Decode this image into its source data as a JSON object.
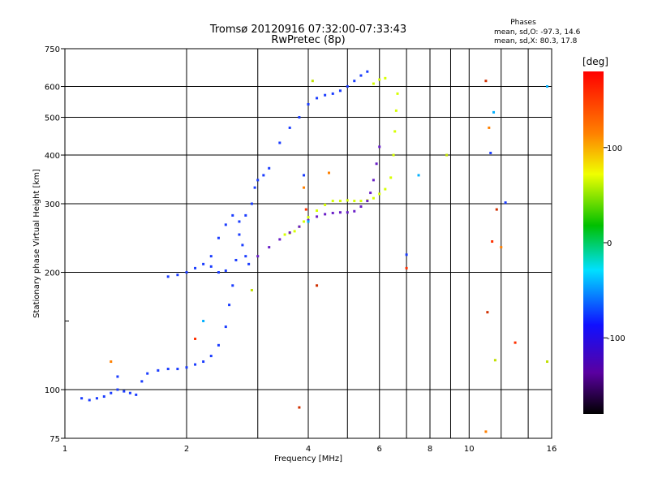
{
  "chart_data": {
    "type": "scatter",
    "title": "Tromsø 20120916 07:32:00-07:33:43",
    "subtitle": "RwPretec (8p)",
    "xlabel": "Frequency [MHz]",
    "ylabel": "Stationary phase Virtual Height [km]",
    "x_scale": "log",
    "y_scale": "log",
    "xlim": [
      1,
      16
    ],
    "ylim": [
      75,
      750
    ],
    "grid": true,
    "x_ticks": [
      1,
      2,
      4,
      6,
      8,
      10,
      16
    ],
    "x_tick_labels": [
      "1",
      "2",
      "4",
      "6",
      "8",
      "10",
      "16"
    ],
    "x_minor_ticks": [
      3,
      5,
      7,
      9,
      12,
      14
    ],
    "y_ticks": [
      75,
      100,
      200,
      300,
      400,
      500,
      600,
      750
    ],
    "y_tick_labels": [
      "75",
      "100",
      "200",
      "300",
      "400",
      "500",
      "600",
      "750"
    ],
    "y_minor_ticks": [
      150
    ],
    "legend": {
      "title": "Phases",
      "lines": [
        "mean, sd,O: -97.3, 14.6",
        "mean, sd,X:  80.3, 17.8"
      ],
      "placement": "top-right"
    },
    "colorbar": {
      "label": "[deg]",
      "range": [
        -180,
        180
      ],
      "ticks": [
        100,
        0,
        -100
      ],
      "tick_labels": [
        "100",
        "0",
        "-100"
      ],
      "colormap": "rainbow"
    },
    "colors": {
      "o_mode": "#1a3cff",
      "x_mode": "#d6ff00",
      "purple_trace": "#6a1fc8",
      "grid": "#000000"
    },
    "series": [
      {
        "mode": "O",
        "points": [
          [
            1.1,
            95
          ],
          [
            1.15,
            94
          ],
          [
            1.2,
            95
          ],
          [
            1.25,
            96
          ],
          [
            1.3,
            98
          ],
          [
            1.35,
            100
          ],
          [
            1.4,
            99
          ],
          [
            1.45,
            98
          ],
          [
            1.5,
            97
          ],
          [
            1.55,
            105
          ],
          [
            1.6,
            110
          ],
          [
            1.7,
            112
          ],
          [
            1.8,
            113
          ],
          [
            1.9,
            113
          ],
          [
            2.0,
            114
          ],
          [
            2.1,
            116
          ],
          [
            2.2,
            118
          ],
          [
            2.3,
            122
          ],
          [
            2.4,
            130
          ],
          [
            2.5,
            145
          ],
          [
            2.55,
            165
          ],
          [
            2.6,
            185
          ],
          [
            2.65,
            215
          ],
          [
            2.7,
            250
          ],
          [
            2.8,
            280
          ],
          [
            2.9,
            300
          ],
          [
            2.95,
            330
          ],
          [
            3.0,
            345
          ],
          [
            3.1,
            355
          ],
          [
            3.2,
            370
          ],
          [
            3.4,
            430
          ],
          [
            3.6,
            470
          ],
          [
            3.8,
            500
          ],
          [
            4.0,
            540
          ],
          [
            4.2,
            560
          ],
          [
            4.4,
            570
          ],
          [
            4.6,
            575
          ],
          [
            4.8,
            585
          ],
          [
            5.0,
            600
          ],
          [
            5.2,
            620
          ],
          [
            5.4,
            640
          ],
          [
            5.6,
            655
          ],
          [
            1.8,
            195
          ],
          [
            1.9,
            197
          ],
          [
            2.0,
            200
          ],
          [
            2.1,
            205
          ],
          [
            2.2,
            210
          ],
          [
            2.3,
            207
          ],
          [
            2.4,
            200
          ],
          [
            2.5,
            202
          ],
          [
            2.3,
            220
          ],
          [
            2.4,
            245
          ],
          [
            2.5,
            265
          ],
          [
            2.6,
            280
          ],
          [
            2.7,
            270
          ],
          [
            2.75,
            235
          ],
          [
            2.8,
            220
          ],
          [
            2.85,
            210
          ]
        ]
      },
      {
        "mode": "X",
        "points": [
          [
            3.5,
            250
          ],
          [
            3.6,
            252
          ],
          [
            3.7,
            255
          ],
          [
            3.8,
            262
          ],
          [
            3.9,
            270
          ],
          [
            4.0,
            277
          ],
          [
            4.2,
            288
          ],
          [
            4.4,
            298
          ],
          [
            4.6,
            305
          ],
          [
            4.8,
            305
          ],
          [
            5.0,
            306
          ],
          [
            5.2,
            305
          ],
          [
            5.4,
            305
          ],
          [
            5.6,
            306
          ],
          [
            5.8,
            310
          ],
          [
            6.0,
            318
          ],
          [
            6.2,
            327
          ],
          [
            6.4,
            350
          ],
          [
            6.5,
            400
          ],
          [
            6.55,
            460
          ],
          [
            6.6,
            520
          ],
          [
            6.65,
            575
          ],
          [
            5.8,
            610
          ],
          [
            6.0,
            625
          ],
          [
            6.2,
            630
          ]
        ]
      },
      {
        "mode": "purple",
        "points": [
          [
            3.0,
            220
          ],
          [
            3.2,
            232
          ],
          [
            3.4,
            243
          ],
          [
            3.6,
            253
          ],
          [
            3.8,
            262
          ],
          [
            4.0,
            272
          ],
          [
            4.2,
            278
          ],
          [
            4.4,
            282
          ],
          [
            4.6,
            284
          ],
          [
            4.8,
            285
          ],
          [
            5.0,
            285
          ],
          [
            5.2,
            287
          ],
          [
            5.4,
            295
          ],
          [
            5.6,
            305
          ],
          [
            5.7,
            320
          ],
          [
            5.8,
            345
          ],
          [
            5.9,
            380
          ],
          [
            6.0,
            420
          ]
        ]
      },
      {
        "mode": "scattered",
        "points": [
          [
            1.3,
            118
          ],
          [
            1.35,
            108
          ],
          [
            2.1,
            135
          ],
          [
            2.2,
            150
          ],
          [
            2.9,
            180
          ],
          [
            3.8,
            90
          ],
          [
            3.9,
            330
          ],
          [
            3.9,
            355
          ],
          [
            3.95,
            290
          ],
          [
            4.0,
            270
          ],
          [
            4.1,
            620
          ],
          [
            4.2,
            185
          ],
          [
            4.5,
            360
          ],
          [
            7.0,
            222
          ],
          [
            7.0,
            205
          ],
          [
            7.5,
            355
          ],
          [
            8.8,
            400
          ],
          [
            11.0,
            620
          ],
          [
            11.2,
            470
          ],
          [
            11.3,
            405
          ],
          [
            11.4,
            240
          ],
          [
            11.5,
            515
          ],
          [
            11.6,
            119
          ],
          [
            11.7,
            290
          ],
          [
            12.0,
            232
          ],
          [
            12.3,
            302
          ],
          [
            13.0,
            132
          ],
          [
            15.6,
            600
          ],
          [
            15.6,
            118
          ],
          [
            11.1,
            158
          ],
          [
            11.0,
            78
          ]
        ]
      }
    ]
  }
}
